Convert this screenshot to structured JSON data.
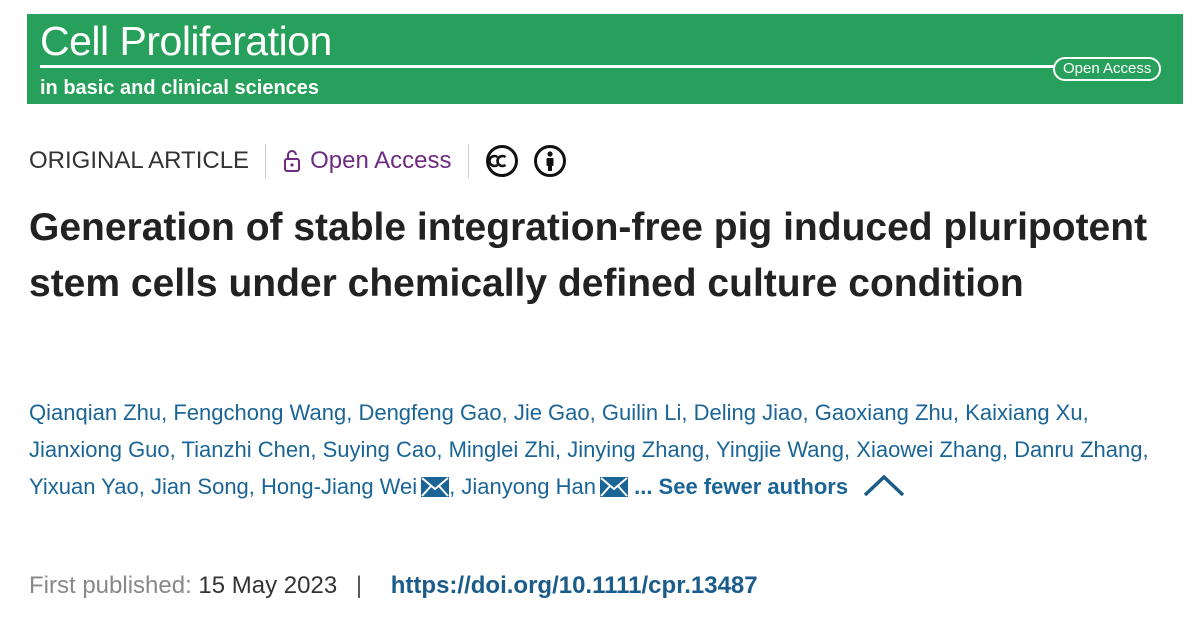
{
  "banner": {
    "title": "Cell Proliferation",
    "subtitle": "in basic and clinical sciences",
    "badge": "Open Access"
  },
  "article": {
    "category": "ORIGINAL ARTICLE",
    "access": "Open Access",
    "title": "Generation of stable integration-free pig induced pluripotent stem cells under chemically defined culture condition",
    "author_separator": ",",
    "authors": [
      {
        "name": "Qianqian Zhu",
        "corresponding": false
      },
      {
        "name": "Fengchong Wang",
        "corresponding": false
      },
      {
        "name": "Dengfeng Gao",
        "corresponding": false
      },
      {
        "name": "Jie Gao",
        "corresponding": false
      },
      {
        "name": "Guilin Li",
        "corresponding": false
      },
      {
        "name": "Deling Jiao",
        "corresponding": false
      },
      {
        "name": "Gaoxiang Zhu",
        "corresponding": false
      },
      {
        "name": "Kaixiang Xu",
        "corresponding": false
      },
      {
        "name": "Jianxiong Guo",
        "corresponding": false
      },
      {
        "name": "Tianzhi Chen",
        "corresponding": false
      },
      {
        "name": "Suying Cao",
        "corresponding": false
      },
      {
        "name": "Minglei Zhi",
        "corresponding": false
      },
      {
        "name": "Jinying Zhang",
        "corresponding": false
      },
      {
        "name": "Yingjie Wang",
        "corresponding": false
      },
      {
        "name": "Xiaowei Zhang",
        "corresponding": false
      },
      {
        "name": "Danru Zhang",
        "corresponding": false
      },
      {
        "name": "Yixuan Yao",
        "corresponding": false
      },
      {
        "name": "Jian Song",
        "corresponding": false
      },
      {
        "name": "Hong-Jiang Wei",
        "corresponding": true
      },
      {
        "name": "Jianyong Han",
        "corresponding": true
      }
    ],
    "toggle_authors": "... See fewer authors",
    "published_label": "First published:",
    "published_date": "15 May 2023",
    "separator": "|",
    "doi": "https://doi.org/10.1111/cpr.13487"
  }
}
